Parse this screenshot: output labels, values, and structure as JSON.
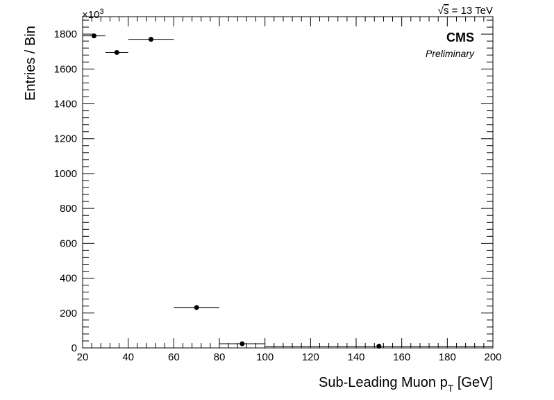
{
  "chart_data": {
    "type": "scatter",
    "xlabel": "Sub-Leading Muon p",
    "xlabel_sub": "T",
    "xlabel_unit": " [GeV]",
    "ylabel": "Entries / Bin",
    "y_multiplier": "×10",
    "y_multiplier_exp": "3",
    "energy_label_pre": "√",
    "energy_label_sqrt": "s",
    "energy_label_post": " = 13 TeV",
    "experiment": "CMS",
    "status": "Preliminary",
    "xlim": [
      20,
      200
    ],
    "ylim": [
      0,
      1900
    ],
    "x_ticks": [
      20,
      40,
      60,
      80,
      100,
      120,
      140,
      160,
      180,
      200
    ],
    "y_ticks": [
      0,
      200,
      400,
      600,
      800,
      1000,
      1200,
      1400,
      1600,
      1800
    ],
    "grid": false,
    "points": [
      {
        "x": 25,
        "xlow": 20,
        "xhigh": 30,
        "y": 1790
      },
      {
        "x": 35,
        "xlow": 30,
        "xhigh": 40,
        "y": 1695
      },
      {
        "x": 50,
        "xlow": 40,
        "xhigh": 60,
        "y": 1770
      },
      {
        "x": 70,
        "xlow": 60,
        "xhigh": 80,
        "y": 232
      },
      {
        "x": 90,
        "xlow": 80,
        "xhigh": 100,
        "y": 24
      },
      {
        "x": 150,
        "xlow": 100,
        "xhigh": 200,
        "y": 10
      }
    ]
  }
}
